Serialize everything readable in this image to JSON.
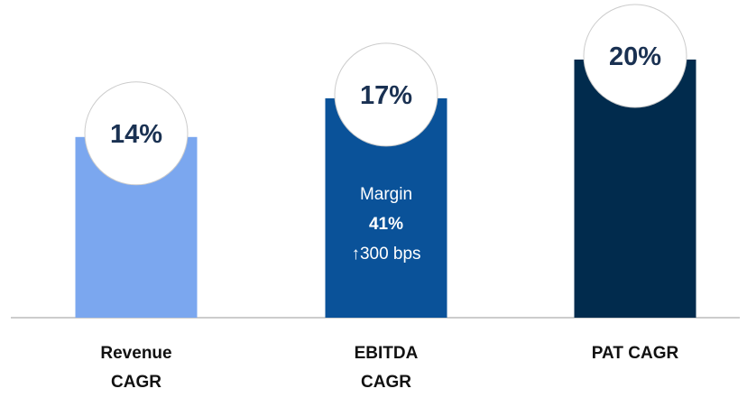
{
  "chart_data": {
    "type": "bar",
    "categories": [
      "Revenue CAGR",
      "EBITDA CAGR",
      "PAT CAGR"
    ],
    "values": [
      14,
      17,
      20
    ],
    "value_labels": [
      "14%",
      "17%",
      "20%"
    ],
    "colors": [
      "#7ba7ef",
      "#0a5299",
      "#012b4d"
    ],
    "annotations": [
      "Margin",
      "41%",
      "↑300 bps"
    ]
  }
}
